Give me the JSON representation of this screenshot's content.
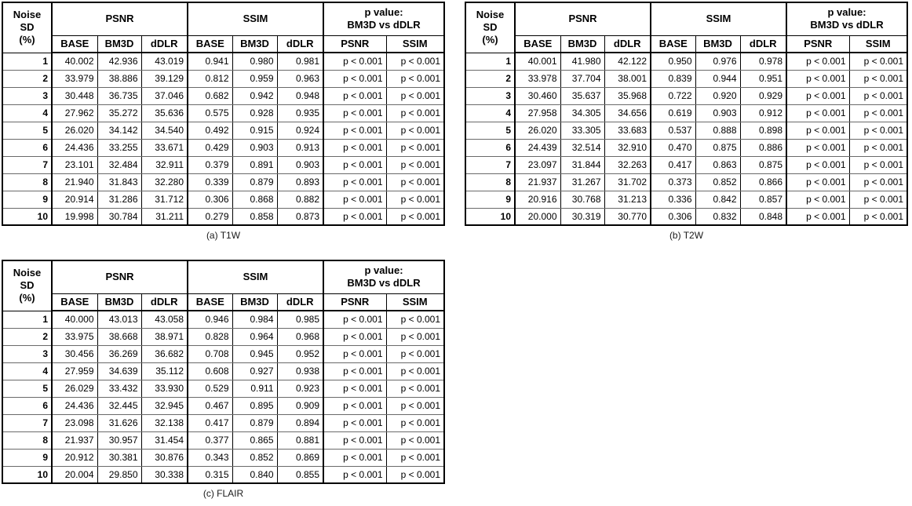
{
  "page": {
    "background": "#ffffff",
    "text_color": "#000000",
    "grid_line_color": "#6a6a6a"
  },
  "header": {
    "noise_label": "Noise SD\n(%)",
    "groups": [
      {
        "label": "PSNR",
        "cols": [
          "BASE",
          "BM3D",
          "dDLR"
        ]
      },
      {
        "label": "SSIM",
        "cols": [
          "BASE",
          "BM3D",
          "dDLR"
        ]
      },
      {
        "label": "p value:\nBM3D vs dDLR",
        "cols": [
          "PSNR",
          "SSIM"
        ]
      }
    ]
  },
  "tables": [
    {
      "id": "t1w",
      "caption": "(a) T1W",
      "rows": [
        [
          "1",
          "40.002",
          "42.936",
          "43.019",
          "0.941",
          "0.980",
          "0.981",
          "p < 0.001",
          "p < 0.001"
        ],
        [
          "2",
          "33.979",
          "38.886",
          "39.129",
          "0.812",
          "0.959",
          "0.963",
          "p < 0.001",
          "p < 0.001"
        ],
        [
          "3",
          "30.448",
          "36.735",
          "37.046",
          "0.682",
          "0.942",
          "0.948",
          "p < 0.001",
          "p < 0.001"
        ],
        [
          "4",
          "27.962",
          "35.272",
          "35.636",
          "0.575",
          "0.928",
          "0.935",
          "p < 0.001",
          "p < 0.001"
        ],
        [
          "5",
          "26.020",
          "34.142",
          "34.540",
          "0.492",
          "0.915",
          "0.924",
          "p < 0.001",
          "p < 0.001"
        ],
        [
          "6",
          "24.436",
          "33.255",
          "33.671",
          "0.429",
          "0.903",
          "0.913",
          "p < 0.001",
          "p < 0.001"
        ],
        [
          "7",
          "23.101",
          "32.484",
          "32.911",
          "0.379",
          "0.891",
          "0.903",
          "p < 0.001",
          "p < 0.001"
        ],
        [
          "8",
          "21.940",
          "31.843",
          "32.280",
          "0.339",
          "0.879",
          "0.893",
          "p < 0.001",
          "p < 0.001"
        ],
        [
          "9",
          "20.914",
          "31.286",
          "31.712",
          "0.306",
          "0.868",
          "0.882",
          "p < 0.001",
          "p < 0.001"
        ],
        [
          "10",
          "19.998",
          "30.784",
          "31.211",
          "0.279",
          "0.858",
          "0.873",
          "p < 0.001",
          "p < 0.001"
        ]
      ]
    },
    {
      "id": "t2w",
      "caption": "(b) T2W",
      "rows": [
        [
          "1",
          "40.001",
          "41.980",
          "42.122",
          "0.950",
          "0.976",
          "0.978",
          "p < 0.001",
          "p < 0.001"
        ],
        [
          "2",
          "33.978",
          "37.704",
          "38.001",
          "0.839",
          "0.944",
          "0.951",
          "p < 0.001",
          "p < 0.001"
        ],
        [
          "3",
          "30.460",
          "35.637",
          "35.968",
          "0.722",
          "0.920",
          "0.929",
          "p < 0.001",
          "p < 0.001"
        ],
        [
          "4",
          "27.958",
          "34.305",
          "34.656",
          "0.619",
          "0.903",
          "0.912",
          "p < 0.001",
          "p < 0.001"
        ],
        [
          "5",
          "26.020",
          "33.305",
          "33.683",
          "0.537",
          "0.888",
          "0.898",
          "p < 0.001",
          "p < 0.001"
        ],
        [
          "6",
          "24.439",
          "32.514",
          "32.910",
          "0.470",
          "0.875",
          "0.886",
          "p < 0.001",
          "p < 0.001"
        ],
        [
          "7",
          "23.097",
          "31.844",
          "32.263",
          "0.417",
          "0.863",
          "0.875",
          "p < 0.001",
          "p < 0.001"
        ],
        [
          "8",
          "21.937",
          "31.267",
          "31.702",
          "0.373",
          "0.852",
          "0.866",
          "p < 0.001",
          "p < 0.001"
        ],
        [
          "9",
          "20.916",
          "30.768",
          "31.213",
          "0.336",
          "0.842",
          "0.857",
          "p < 0.001",
          "p < 0.001"
        ],
        [
          "10",
          "20.000",
          "30.319",
          "30.770",
          "0.306",
          "0.832",
          "0.848",
          "p < 0.001",
          "p < 0.001"
        ]
      ]
    },
    {
      "id": "flair",
      "caption": "(c) FLAIR",
      "rows": [
        [
          "1",
          "40.000",
          "43.013",
          "43.058",
          "0.946",
          "0.984",
          "0.985",
          "p < 0.001",
          "p < 0.001"
        ],
        [
          "2",
          "33.975",
          "38.668",
          "38.971",
          "0.828",
          "0.964",
          "0.968",
          "p < 0.001",
          "p < 0.001"
        ],
        [
          "3",
          "30.456",
          "36.269",
          "36.682",
          "0.708",
          "0.945",
          "0.952",
          "p < 0.001",
          "p < 0.001"
        ],
        [
          "4",
          "27.959",
          "34.639",
          "35.112",
          "0.608",
          "0.927",
          "0.938",
          "p < 0.001",
          "p < 0.001"
        ],
        [
          "5",
          "26.029",
          "33.432",
          "33.930",
          "0.529",
          "0.911",
          "0.923",
          "p < 0.001",
          "p < 0.001"
        ],
        [
          "6",
          "24.436",
          "32.445",
          "32.945",
          "0.467",
          "0.895",
          "0.909",
          "p < 0.001",
          "p < 0.001"
        ],
        [
          "7",
          "23.098",
          "31.626",
          "32.138",
          "0.417",
          "0.879",
          "0.894",
          "p < 0.001",
          "p < 0.001"
        ],
        [
          "8",
          "21.937",
          "30.957",
          "31.454",
          "0.377",
          "0.865",
          "0.881",
          "p < 0.001",
          "p < 0.001"
        ],
        [
          "9",
          "20.912",
          "30.381",
          "30.876",
          "0.343",
          "0.852",
          "0.869",
          "p < 0.001",
          "p < 0.001"
        ],
        [
          "10",
          "20.004",
          "29.850",
          "30.338",
          "0.315",
          "0.840",
          "0.855",
          "p < 0.001",
          "p < 0.001"
        ]
      ]
    }
  ]
}
